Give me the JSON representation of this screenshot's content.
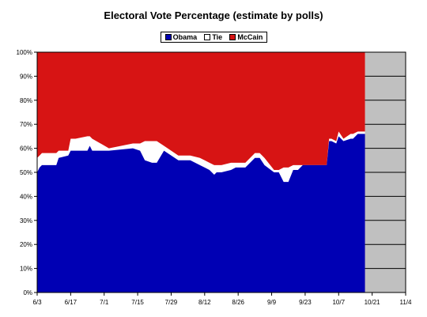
{
  "chart_data": {
    "type": "area",
    "title": "Electoral Vote Percentage (estimate by polls)",
    "xlabel": "",
    "ylabel": "",
    "ylim": [
      0,
      100
    ],
    "y_ticks": [
      "0%",
      "10%",
      "20%",
      "30%",
      "40%",
      "50%",
      "60%",
      "70%",
      "80%",
      "90%",
      "100%"
    ],
    "x_ticks": [
      "6/3",
      "6/17",
      "7/1",
      "7/15",
      "7/29",
      "8/12",
      "8/26",
      "9/9",
      "9/23",
      "10/7",
      "10/21",
      "11/4"
    ],
    "x_range_days": [
      0,
      154
    ],
    "grid": "horizontal",
    "legend_position": "top-center",
    "colors": {
      "Obama": "#0000b4",
      "Tie": "#ffffff",
      "McCain": "#d71414",
      "future": "#c0c0c0"
    },
    "series": [
      {
        "name": "Obama",
        "x_days": [
          0,
          1,
          2,
          8,
          9,
          13,
          14,
          15,
          16,
          21,
          22,
          23,
          30,
          40,
          43,
          45,
          48,
          50,
          53,
          59,
          62,
          64,
          68,
          70,
          72,
          74,
          75,
          77,
          81,
          83,
          85,
          87,
          91,
          93,
          95,
          99,
          101,
          103,
          105,
          107,
          109,
          111,
          114,
          121,
          122,
          123,
          125,
          126,
          128,
          131,
          132,
          134,
          135,
          136,
          137
        ],
        "values": [
          50,
          52,
          53,
          53,
          56,
          57,
          59,
          59,
          59,
          59,
          61,
          59,
          59,
          60,
          59,
          55,
          54,
          54,
          59,
          55,
          55,
          55,
          53,
          52,
          51,
          49,
          50,
          50,
          51,
          52,
          52,
          52,
          56,
          56,
          53,
          50,
          50,
          46,
          46,
          51,
          51,
          53,
          53,
          53,
          63,
          63,
          62,
          65,
          63,
          64,
          64,
          66,
          66,
          66,
          66
        ]
      },
      {
        "name": "Tie",
        "x_days": [
          0,
          1,
          2,
          8,
          9,
          13,
          14,
          15,
          16,
          21,
          22,
          23,
          30,
          40,
          43,
          45,
          48,
          50,
          53,
          59,
          62,
          64,
          68,
          70,
          72,
          74,
          75,
          77,
          81,
          83,
          85,
          87,
          91,
          93,
          95,
          99,
          101,
          103,
          105,
          107,
          109,
          111,
          114,
          121,
          122,
          123,
          125,
          126,
          128,
          131,
          132,
          134,
          135,
          136,
          137
        ],
        "values": [
          6,
          5,
          5,
          5,
          3,
          2,
          5,
          5,
          5,
          6,
          4,
          5,
          1,
          2,
          3,
          8,
          9,
          9,
          2,
          2,
          2,
          2,
          3,
          3,
          3,
          4,
          3,
          3,
          3,
          2,
          2,
          2,
          2,
          2,
          3,
          1,
          1,
          6,
          6,
          2,
          2,
          0,
          0,
          0,
          1,
          1,
          1,
          2,
          1,
          2,
          2,
          1,
          1,
          1,
          1
        ]
      },
      {
        "name": "McCain",
        "x_days": [
          0,
          137
        ],
        "values_note_free": "remainder to 100%",
        "values": [
          44,
          33
        ]
      }
    ]
  }
}
